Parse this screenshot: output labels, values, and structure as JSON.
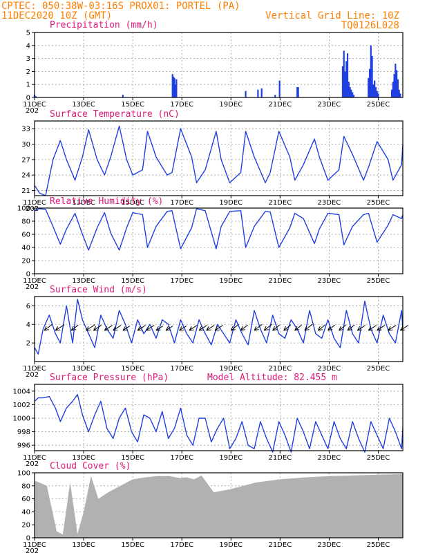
{
  "header": {
    "line1_left": "CPTEC:  050:38W-03:16S  PROX01: PORTEL (PA)",
    "line2_left": "11DEC2020 10Z (GMT)",
    "line2_right": "Vertical Grid Line: 10Z",
    "line3_right": "TQ0126L028"
  },
  "colors": {
    "header": "#ff7f00",
    "title": "#e0187a",
    "series": "#1f3fe0",
    "cloud": "#a8a8a8",
    "wind_arrow": "#000000"
  },
  "x_axis": {
    "start_day": 11,
    "end_day": 26,
    "tick_labels": [
      "11DEC",
      "13DEC",
      "15DEC",
      "17DEC",
      "19DEC",
      "21DEC",
      "23DEC",
      "25DEC"
    ],
    "tick_days": [
      11,
      13,
      15,
      17,
      19,
      21,
      23,
      25
    ],
    "year_fragment": "202"
  },
  "chart_data": [
    {
      "type": "bar",
      "title": "Precipitation (mm/h)",
      "ylim": [
        0,
        5
      ],
      "yticks": [
        0,
        1,
        2,
        3,
        4,
        5
      ],
      "x": [
        11.0,
        11.05,
        14.6,
        16.62,
        16.66,
        16.7,
        16.74,
        16.78,
        19.6,
        20.1,
        20.25,
        20.8,
        20.98,
        21.7,
        21.74,
        23.55,
        23.6,
        23.65,
        23.7,
        23.75,
        23.8,
        23.85,
        23.9,
        23.95,
        24.0,
        24.6,
        24.65,
        24.7,
        24.75,
        24.8,
        24.85,
        24.9,
        24.95,
        25.0,
        25.55,
        25.6,
        25.65,
        25.7,
        25.75,
        25.8,
        25.85,
        25.9
      ],
      "values": [
        0.2,
        0.1,
        0.2,
        1.8,
        1.6,
        1.5,
        1.0,
        1.4,
        0.5,
        0.6,
        0.7,
        0.2,
        1.3,
        0.8,
        0.8,
        2.4,
        3.6,
        2.0,
        2.8,
        3.4,
        1.2,
        0.8,
        0.6,
        0.4,
        0.2,
        1.5,
        2.2,
        4.0,
        3.2,
        1.0,
        1.3,
        0.8,
        0.5,
        0.3,
        0.6,
        1.2,
        1.8,
        2.6,
        2.1,
        1.4,
        0.6,
        0.3
      ]
    },
    {
      "type": "line",
      "title": "Surface Temperature (nC)",
      "ylim": [
        20,
        34.5
      ],
      "yticks": [
        21,
        24,
        27,
        30,
        33
      ],
      "x": [
        11.0,
        11.2,
        11.45,
        11.75,
        12.05,
        12.3,
        12.65,
        12.95,
        13.2,
        13.55,
        13.85,
        14.1,
        14.45,
        14.75,
        15.0,
        15.4,
        15.6,
        15.95,
        16.4,
        16.6,
        16.95,
        17.4,
        17.6,
        17.95,
        18.4,
        18.6,
        18.95,
        19.4,
        19.6,
        19.95,
        20.4,
        20.6,
        20.95,
        21.4,
        21.6,
        21.95,
        22.4,
        22.6,
        22.95,
        23.4,
        23.6,
        23.95,
        24.4,
        24.6,
        24.95,
        25.4,
        25.6,
        25.95,
        26.0
      ],
      "values": [
        22.0,
        20.5,
        20.0,
        27.0,
        30.7,
        27.0,
        23.0,
        27.5,
        32.8,
        27.0,
        24.0,
        27.5,
        33.5,
        27.0,
        24.0,
        25.0,
        32.5,
        27.5,
        24.0,
        24.5,
        33.0,
        27.5,
        22.5,
        25.0,
        32.5,
        27.0,
        22.5,
        24.5,
        32.5,
        27.5,
        22.5,
        24.5,
        32.5,
        27.5,
        23.0,
        26.0,
        31.0,
        27.5,
        23.0,
        25.0,
        31.5,
        28.0,
        23.0,
        25.5,
        30.5,
        27.0,
        23.0,
        26.0,
        30.0
      ]
    },
    {
      "type": "line",
      "title": "Relative Humidity (%)",
      "ylim": [
        0,
        100
      ],
      "yticks": [
        0,
        20,
        40,
        60,
        80,
        100
      ],
      "x": [
        11.0,
        11.2,
        11.45,
        11.75,
        12.05,
        12.3,
        12.65,
        12.95,
        13.2,
        13.55,
        13.85,
        14.1,
        14.45,
        14.75,
        15.0,
        15.4,
        15.6,
        15.95,
        16.4,
        16.6,
        16.95,
        17.4,
        17.6,
        17.95,
        18.4,
        18.6,
        18.95,
        19.4,
        19.6,
        19.95,
        20.4,
        20.6,
        20.95,
        21.4,
        21.6,
        21.95,
        22.4,
        22.6,
        22.95,
        23.4,
        23.6,
        23.95,
        24.4,
        24.6,
        24.95,
        25.4,
        25.6,
        25.95,
        26.0
      ],
      "values": [
        96,
        99,
        98,
        72,
        45,
        68,
        92,
        60,
        36,
        70,
        93,
        62,
        36,
        70,
        93,
        90,
        40,
        72,
        95,
        96,
        38,
        70,
        99,
        96,
        38,
        72,
        95,
        96,
        40,
        72,
        95,
        94,
        40,
        70,
        92,
        84,
        46,
        68,
        92,
        90,
        44,
        72,
        90,
        92,
        48,
        74,
        90,
        84,
        90
      ]
    },
    {
      "type": "line",
      "title": "Surface Wind (m/s)",
      "ylim": [
        0,
        7
      ],
      "yticks": [
        2,
        4,
        6
      ],
      "x": [
        11.0,
        11.15,
        11.35,
        11.6,
        11.85,
        12.05,
        12.3,
        12.55,
        12.75,
        12.95,
        13.2,
        13.45,
        13.7,
        13.95,
        14.2,
        14.45,
        14.7,
        14.95,
        15.2,
        15.45,
        15.7,
        15.95,
        16.2,
        16.45,
        16.7,
        16.95,
        17.2,
        17.45,
        17.7,
        17.95,
        18.2,
        18.45,
        18.7,
        18.95,
        19.2,
        19.45,
        19.7,
        19.95,
        20.2,
        20.45,
        20.7,
        20.95,
        21.2,
        21.45,
        21.7,
        21.95,
        22.2,
        22.45,
        22.7,
        22.95,
        23.2,
        23.45,
        23.7,
        23.95,
        24.2,
        24.45,
        24.7,
        24.95,
        25.2,
        25.45,
        25.7,
        25.95,
        26.0
      ],
      "values": [
        1.5,
        0.8,
        3.5,
        5.0,
        3.0,
        2.0,
        6.0,
        2.0,
        6.7,
        4.5,
        3.0,
        1.5,
        5.0,
        3.5,
        2.5,
        5.5,
        4.0,
        2.0,
        4.5,
        3.0,
        4.0,
        2.5,
        4.5,
        4.0,
        2.0,
        4.5,
        3.0,
        2.0,
        4.5,
        3.0,
        1.8,
        4.0,
        3.0,
        2.0,
        4.5,
        3.0,
        1.8,
        5.5,
        3.5,
        2.0,
        5.0,
        3.0,
        2.5,
        4.5,
        3.5,
        2.0,
        5.5,
        3.0,
        2.5,
        4.5,
        2.5,
        1.5,
        5.5,
        3.0,
        2.0,
        6.5,
        3.5,
        2.0,
        5.0,
        3.0,
        2.0,
        5.5,
        3.5
      ],
      "arrow_x": [
        11.4,
        11.85,
        12.5,
        13.1,
        13.4,
        13.85,
        14.2,
        14.6,
        15.2,
        15.55,
        15.95,
        16.35,
        16.9,
        17.3,
        17.7,
        18.0,
        18.35,
        19.0,
        19.4,
        19.95,
        20.35,
        20.7,
        21.15,
        21.6,
        22.0,
        22.55,
        22.95,
        23.4,
        23.75,
        24.15,
        24.6,
        24.95,
        25.4,
        25.9
      ],
      "arrow_speed": [
        4.5,
        4.5,
        4.0,
        4.5,
        4.0,
        4.0,
        4.0,
        3.5,
        4.0,
        4.0,
        3.5,
        3.5,
        3.5,
        4.0,
        4.0,
        4.0,
        4.0,
        4.5,
        4.0,
        4.5,
        4.5,
        4.0,
        4.0,
        4.0,
        4.5,
        4.0,
        4.0,
        4.0,
        4.0,
        4.0,
        4.0,
        4.0,
        4.0,
        4.0
      ],
      "arrow_direction_deg": [
        60,
        55,
        60,
        55,
        55,
        55,
        55,
        55,
        55,
        55,
        55,
        55,
        55,
        55,
        55,
        55,
        55,
        60,
        60,
        60,
        60,
        60,
        60,
        60,
        60,
        60,
        60,
        60,
        60,
        55,
        55,
        55,
        55,
        55
      ]
    },
    {
      "type": "line",
      "title": "Surface Pressure (hPa)",
      "annotation": "Model Altitude: 82.455 m",
      "ylim": [
        995.2,
        1005
      ],
      "yticks": [
        996,
        998,
        1000,
        1002,
        1004
      ],
      "x": [
        11.0,
        11.15,
        11.35,
        11.6,
        11.85,
        12.05,
        12.3,
        12.55,
        12.75,
        12.95,
        13.2,
        13.45,
        13.7,
        13.95,
        14.2,
        14.45,
        14.7,
        14.95,
        15.2,
        15.45,
        15.7,
        15.95,
        16.2,
        16.45,
        16.7,
        16.95,
        17.2,
        17.45,
        17.7,
        17.95,
        18.2,
        18.45,
        18.7,
        18.95,
        19.2,
        19.45,
        19.7,
        19.95,
        20.2,
        20.45,
        20.7,
        20.95,
        21.2,
        21.45,
        21.7,
        21.95,
        22.2,
        22.45,
        22.7,
        22.95,
        23.2,
        23.45,
        23.7,
        23.95,
        24.2,
        24.45,
        24.7,
        24.95,
        25.2,
        25.45,
        25.7,
        25.95,
        26.0
      ],
      "values": [
        1002.5,
        1003.0,
        1003.0,
        1003.2,
        1001.5,
        999.5,
        1001.5,
        1002.5,
        1003.5,
        1000.5,
        998.0,
        1000.5,
        1002.5,
        998.5,
        997.0,
        1000.0,
        1001.5,
        998.0,
        996.5,
        1000.5,
        1000.0,
        998.0,
        1001.0,
        997.0,
        998.5,
        1001.5,
        997.5,
        996.0,
        1000.0,
        1000.0,
        996.5,
        998.5,
        1000.0,
        995.5,
        997.0,
        999.5,
        996.0,
        995.5,
        999.5,
        997.0,
        995.0,
        999.5,
        997.5,
        995.0,
        1000.0,
        998.0,
        995.5,
        999.5,
        997.5,
        995.5,
        999.5,
        997.0,
        995.5,
        999.5,
        997.0,
        995.0,
        999.5,
        997.5,
        995.5,
        1000.0,
        998.0,
        995.5,
        998.5
      ]
    },
    {
      "type": "bar",
      "title": "Cloud Cover (%)",
      "ylim": [
        0,
        100
      ],
      "yticks": [
        0,
        20,
        40,
        60,
        80,
        100
      ],
      "x": [
        11.0,
        11.5,
        11.9,
        12.15,
        12.45,
        12.75,
        13.0,
        13.3,
        13.6,
        14.0,
        14.5,
        15.0,
        15.5,
        16.0,
        16.5,
        16.9,
        17.2,
        17.5,
        17.8,
        18.3,
        19.0,
        20.0,
        21.0,
        22.0,
        23.0,
        24.0,
        25.0,
        26.0
      ],
      "values": [
        88,
        80,
        10,
        5,
        85,
        6,
        40,
        95,
        60,
        70,
        80,
        90,
        93,
        95,
        95,
        92,
        93,
        90,
        96,
        70,
        75,
        85,
        90,
        93,
        95,
        96,
        97,
        98
      ]
    }
  ]
}
